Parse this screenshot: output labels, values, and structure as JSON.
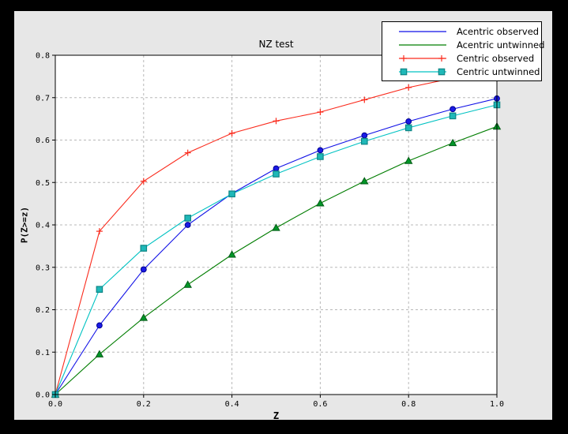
{
  "figure": {
    "outer_background": "#000000",
    "figure_background": "#e7e7e7",
    "axes_background": "#ffffff",
    "grid_color": "#b8b8b8"
  },
  "chart_data": {
    "type": "line",
    "title": "NZ test",
    "xlabel": "Z",
    "ylabel": "P(Z>=z)",
    "xlim": [
      0.0,
      1.0
    ],
    "ylim": [
      0.0,
      0.8
    ],
    "grid": true,
    "legend_position": "upper right, overlapping plot top-right",
    "xticks": [
      0.0,
      0.2,
      0.4,
      0.6,
      0.8,
      1.0
    ],
    "xtick_labels": [
      "0.0",
      "0.2",
      "0.4",
      "0.6",
      "0.8",
      "1.0"
    ],
    "yticks": [
      0.0,
      0.1,
      0.2,
      0.3,
      0.4,
      0.5,
      0.6,
      0.7,
      0.8
    ],
    "ytick_labels": [
      "0.0",
      "0.1",
      "0.2",
      "0.3",
      "0.4",
      "0.5",
      "0.6",
      "0.7",
      "0.8"
    ],
    "x": [
      0.0,
      0.1,
      0.2,
      0.3,
      0.4,
      0.5,
      0.6,
      0.7,
      0.8,
      0.9,
      1.0
    ],
    "series": [
      {
        "name": "Acentric observed",
        "color": "#0f0fe6",
        "marker": "circle",
        "marker_fill": "#1a1ae6",
        "marker_edge": "#000090",
        "legend_markers": false,
        "values": [
          0.0,
          0.163,
          0.295,
          0.4,
          0.474,
          0.533,
          0.576,
          0.611,
          0.644,
          0.673,
          0.698
        ]
      },
      {
        "name": "Acentric untwinned",
        "color": "#007d00",
        "marker": "triangle",
        "marker_fill": "#009628",
        "marker_edge": "#005a14",
        "legend_markers": false,
        "values": [
          0.0,
          0.095,
          0.181,
          0.259,
          0.33,
          0.393,
          0.451,
          0.503,
          0.551,
          0.593,
          0.632
        ]
      },
      {
        "name": "Centric observed",
        "color": "#fa2b1d",
        "marker": "plus",
        "marker_fill": "#fa2b1d",
        "marker_edge": "#fa2b1d",
        "legend_markers": true,
        "values": [
          0.0,
          0.385,
          0.503,
          0.57,
          0.616,
          0.645,
          0.666,
          0.695,
          0.724,
          0.746,
          0.766
        ]
      },
      {
        "name": "Centric untwinned",
        "color": "#00c2c2",
        "marker": "square",
        "marker_fill": "#1fb8b8",
        "marker_edge": "#0e8585",
        "legend_markers": true,
        "values": [
          0.0,
          0.248,
          0.345,
          0.416,
          0.473,
          0.52,
          0.561,
          0.597,
          0.629,
          0.657,
          0.683
        ]
      }
    ]
  }
}
